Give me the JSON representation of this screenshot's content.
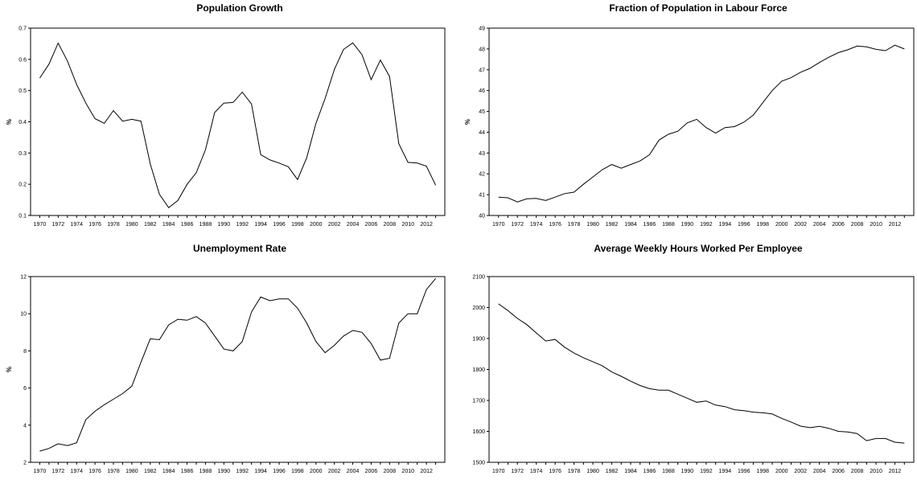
{
  "chart_data": [
    {
      "type": "line",
      "title": "Population Growth",
      "xlabel": "",
      "ylabel": "%",
      "ylim": [
        0.1,
        0.7
      ],
      "yticks": [
        "0.1",
        "0.2",
        "0.3",
        "0.4",
        "0.5",
        "0.6",
        "0.7"
      ],
      "xlim": [
        1970,
        2013
      ],
      "xticks": [
        "1970",
        "1972",
        "1974",
        "1976",
        "1978",
        "1980",
        "1982",
        "1984",
        "1986",
        "1988",
        "1990",
        "1992",
        "1994",
        "1996",
        "1998",
        "2000",
        "2002",
        "2004",
        "2006",
        "2008",
        "2010",
        "2012"
      ],
      "x": [
        1970,
        1971,
        1972,
        1973,
        1974,
        1975,
        1976,
        1977,
        1978,
        1979,
        1980,
        1981,
        1982,
        1983,
        1984,
        1985,
        1986,
        1987,
        1988,
        1989,
        1990,
        1991,
        1992,
        1993,
        1994,
        1995,
        1996,
        1997,
        1998,
        1999,
        2000,
        2001,
        2002,
        2003,
        2004,
        2005,
        2006,
        2007,
        2008,
        2009,
        2010,
        2011,
        2012,
        2013
      ],
      "values": [
        0.54,
        0.585,
        0.652,
        0.595,
        0.52,
        0.46,
        0.41,
        0.395,
        0.436,
        0.402,
        0.408,
        0.402,
        0.265,
        0.168,
        0.125,
        0.148,
        0.2,
        0.237,
        0.31,
        0.43,
        0.46,
        0.462,
        0.495,
        0.457,
        0.295,
        0.278,
        0.268,
        0.256,
        0.215,
        0.285,
        0.395,
        0.475,
        0.568,
        0.632,
        0.653,
        0.615,
        0.535,
        0.598,
        0.545,
        0.33,
        0.27,
        0.268,
        0.258,
        0.197
      ]
    },
    {
      "type": "line",
      "title": "Fraction of Population in Labour Force",
      "xlabel": "",
      "ylabel": "%",
      "ylim": [
        40,
        49
      ],
      "yticks": [
        "40",
        "41",
        "42",
        "43",
        "44",
        "45",
        "46",
        "47",
        "48",
        "49"
      ],
      "xlim": [
        1970,
        2013
      ],
      "xticks": [
        "1970",
        "1972",
        "1974",
        "1976",
        "1978",
        "1980",
        "1982",
        "1984",
        "1986",
        "1988",
        "1990",
        "1992",
        "1994",
        "1996",
        "1998",
        "2000",
        "2002",
        "2004",
        "2006",
        "2008",
        "2010",
        "2012"
      ],
      "x": [
        1970,
        1971,
        1972,
        1973,
        1974,
        1975,
        1976,
        1977,
        1978,
        1979,
        1980,
        1981,
        1982,
        1983,
        1984,
        1985,
        1986,
        1987,
        1988,
        1989,
        1990,
        1991,
        1992,
        1993,
        1994,
        1995,
        1996,
        1997,
        1998,
        1999,
        2000,
        2001,
        2002,
        2003,
        2004,
        2005,
        2006,
        2007,
        2008,
        2009,
        2010,
        2011,
        2012,
        2013
      ],
      "values": [
        40.88,
        40.85,
        40.65,
        40.8,
        40.82,
        40.72,
        40.88,
        41.05,
        41.12,
        41.5,
        41.85,
        42.2,
        42.45,
        42.27,
        42.45,
        42.62,
        42.92,
        43.62,
        43.9,
        44.05,
        44.45,
        44.62,
        44.22,
        43.96,
        44.22,
        44.27,
        44.48,
        44.82,
        45.42,
        46.0,
        46.45,
        46.62,
        46.88,
        47.07,
        47.35,
        47.6,
        47.82,
        47.96,
        48.14,
        48.1,
        47.98,
        47.92,
        48.18,
        48.0
      ]
    },
    {
      "type": "line",
      "title": "Unemployment Rate",
      "xlabel": "",
      "ylabel": "%",
      "ylim": [
        2,
        12
      ],
      "yticks": [
        "2",
        "4",
        "6",
        "8",
        "10",
        "12"
      ],
      "xlim": [
        1970,
        2013
      ],
      "xticks": [
        "1970",
        "1972",
        "1974",
        "1976",
        "1978",
        "1980",
        "1982",
        "1984",
        "1986",
        "1988",
        "1990",
        "1992",
        "1994",
        "1996",
        "1998",
        "2000",
        "2002",
        "2004",
        "2006",
        "2008",
        "2010",
        "2012"
      ],
      "x": [
        1970,
        1971,
        1972,
        1973,
        1974,
        1975,
        1976,
        1977,
        1978,
        1979,
        1980,
        1981,
        1982,
        1983,
        1984,
        1985,
        1986,
        1987,
        1988,
        1989,
        1990,
        1991,
        1992,
        1993,
        1994,
        1995,
        1996,
        1997,
        1998,
        1999,
        2000,
        2001,
        2002,
        2003,
        2004,
        2005,
        2006,
        2007,
        2008,
        2009,
        2010,
        2011,
        2012,
        2013
      ],
      "values": [
        2.6,
        2.75,
        3.0,
        2.9,
        3.05,
        4.3,
        4.75,
        5.1,
        5.4,
        5.7,
        6.1,
        7.4,
        8.65,
        8.6,
        9.4,
        9.7,
        9.65,
        9.85,
        9.5,
        8.8,
        8.1,
        8.0,
        8.5,
        10.1,
        10.9,
        10.7,
        10.8,
        10.8,
        10.3,
        9.5,
        8.5,
        7.9,
        8.3,
        8.8,
        9.1,
        9.0,
        8.4,
        7.5,
        7.6,
        9.5,
        10.0,
        10.0,
        11.3,
        11.9
      ]
    },
    {
      "type": "line",
      "title": "Average Weekly Hours Worked Per Employee",
      "xlabel": "",
      "ylabel": "",
      "ylim": [
        1500,
        2100
      ],
      "yticks": [
        "1500",
        "1600",
        "1700",
        "1800",
        "1900",
        "2000",
        "2100"
      ],
      "xlim": [
        1970,
        2013
      ],
      "xticks": [
        "1970",
        "1972",
        "1974",
        "1976",
        "1978",
        "1980",
        "1982",
        "1984",
        "1986",
        "1988",
        "1990",
        "1992",
        "1994",
        "1996",
        "1998",
        "2000",
        "2002",
        "2004",
        "2006",
        "2008",
        "2010",
        "2012"
      ],
      "x": [
        1970,
        1971,
        1972,
        1973,
        1974,
        1975,
        1976,
        1977,
        1978,
        1979,
        1980,
        1981,
        1982,
        1983,
        1984,
        1985,
        1986,
        1987,
        1988,
        1989,
        1990,
        1991,
        1992,
        1993,
        1994,
        1995,
        1996,
        1997,
        1998,
        1999,
        2000,
        2001,
        2002,
        2003,
        2004,
        2005,
        2006,
        2007,
        2008,
        2009,
        2010,
        2011,
        2012,
        2013
      ],
      "values": [
        2012,
        1990,
        1965,
        1945,
        1918,
        1892,
        1897,
        1872,
        1853,
        1838,
        1825,
        1812,
        1792,
        1778,
        1762,
        1748,
        1738,
        1733,
        1733,
        1720,
        1707,
        1694,
        1698,
        1685,
        1680,
        1670,
        1667,
        1662,
        1660,
        1656,
        1642,
        1630,
        1617,
        1612,
        1616,
        1610,
        1600,
        1598,
        1593,
        1570,
        1577,
        1577,
        1565,
        1562
      ]
    }
  ]
}
